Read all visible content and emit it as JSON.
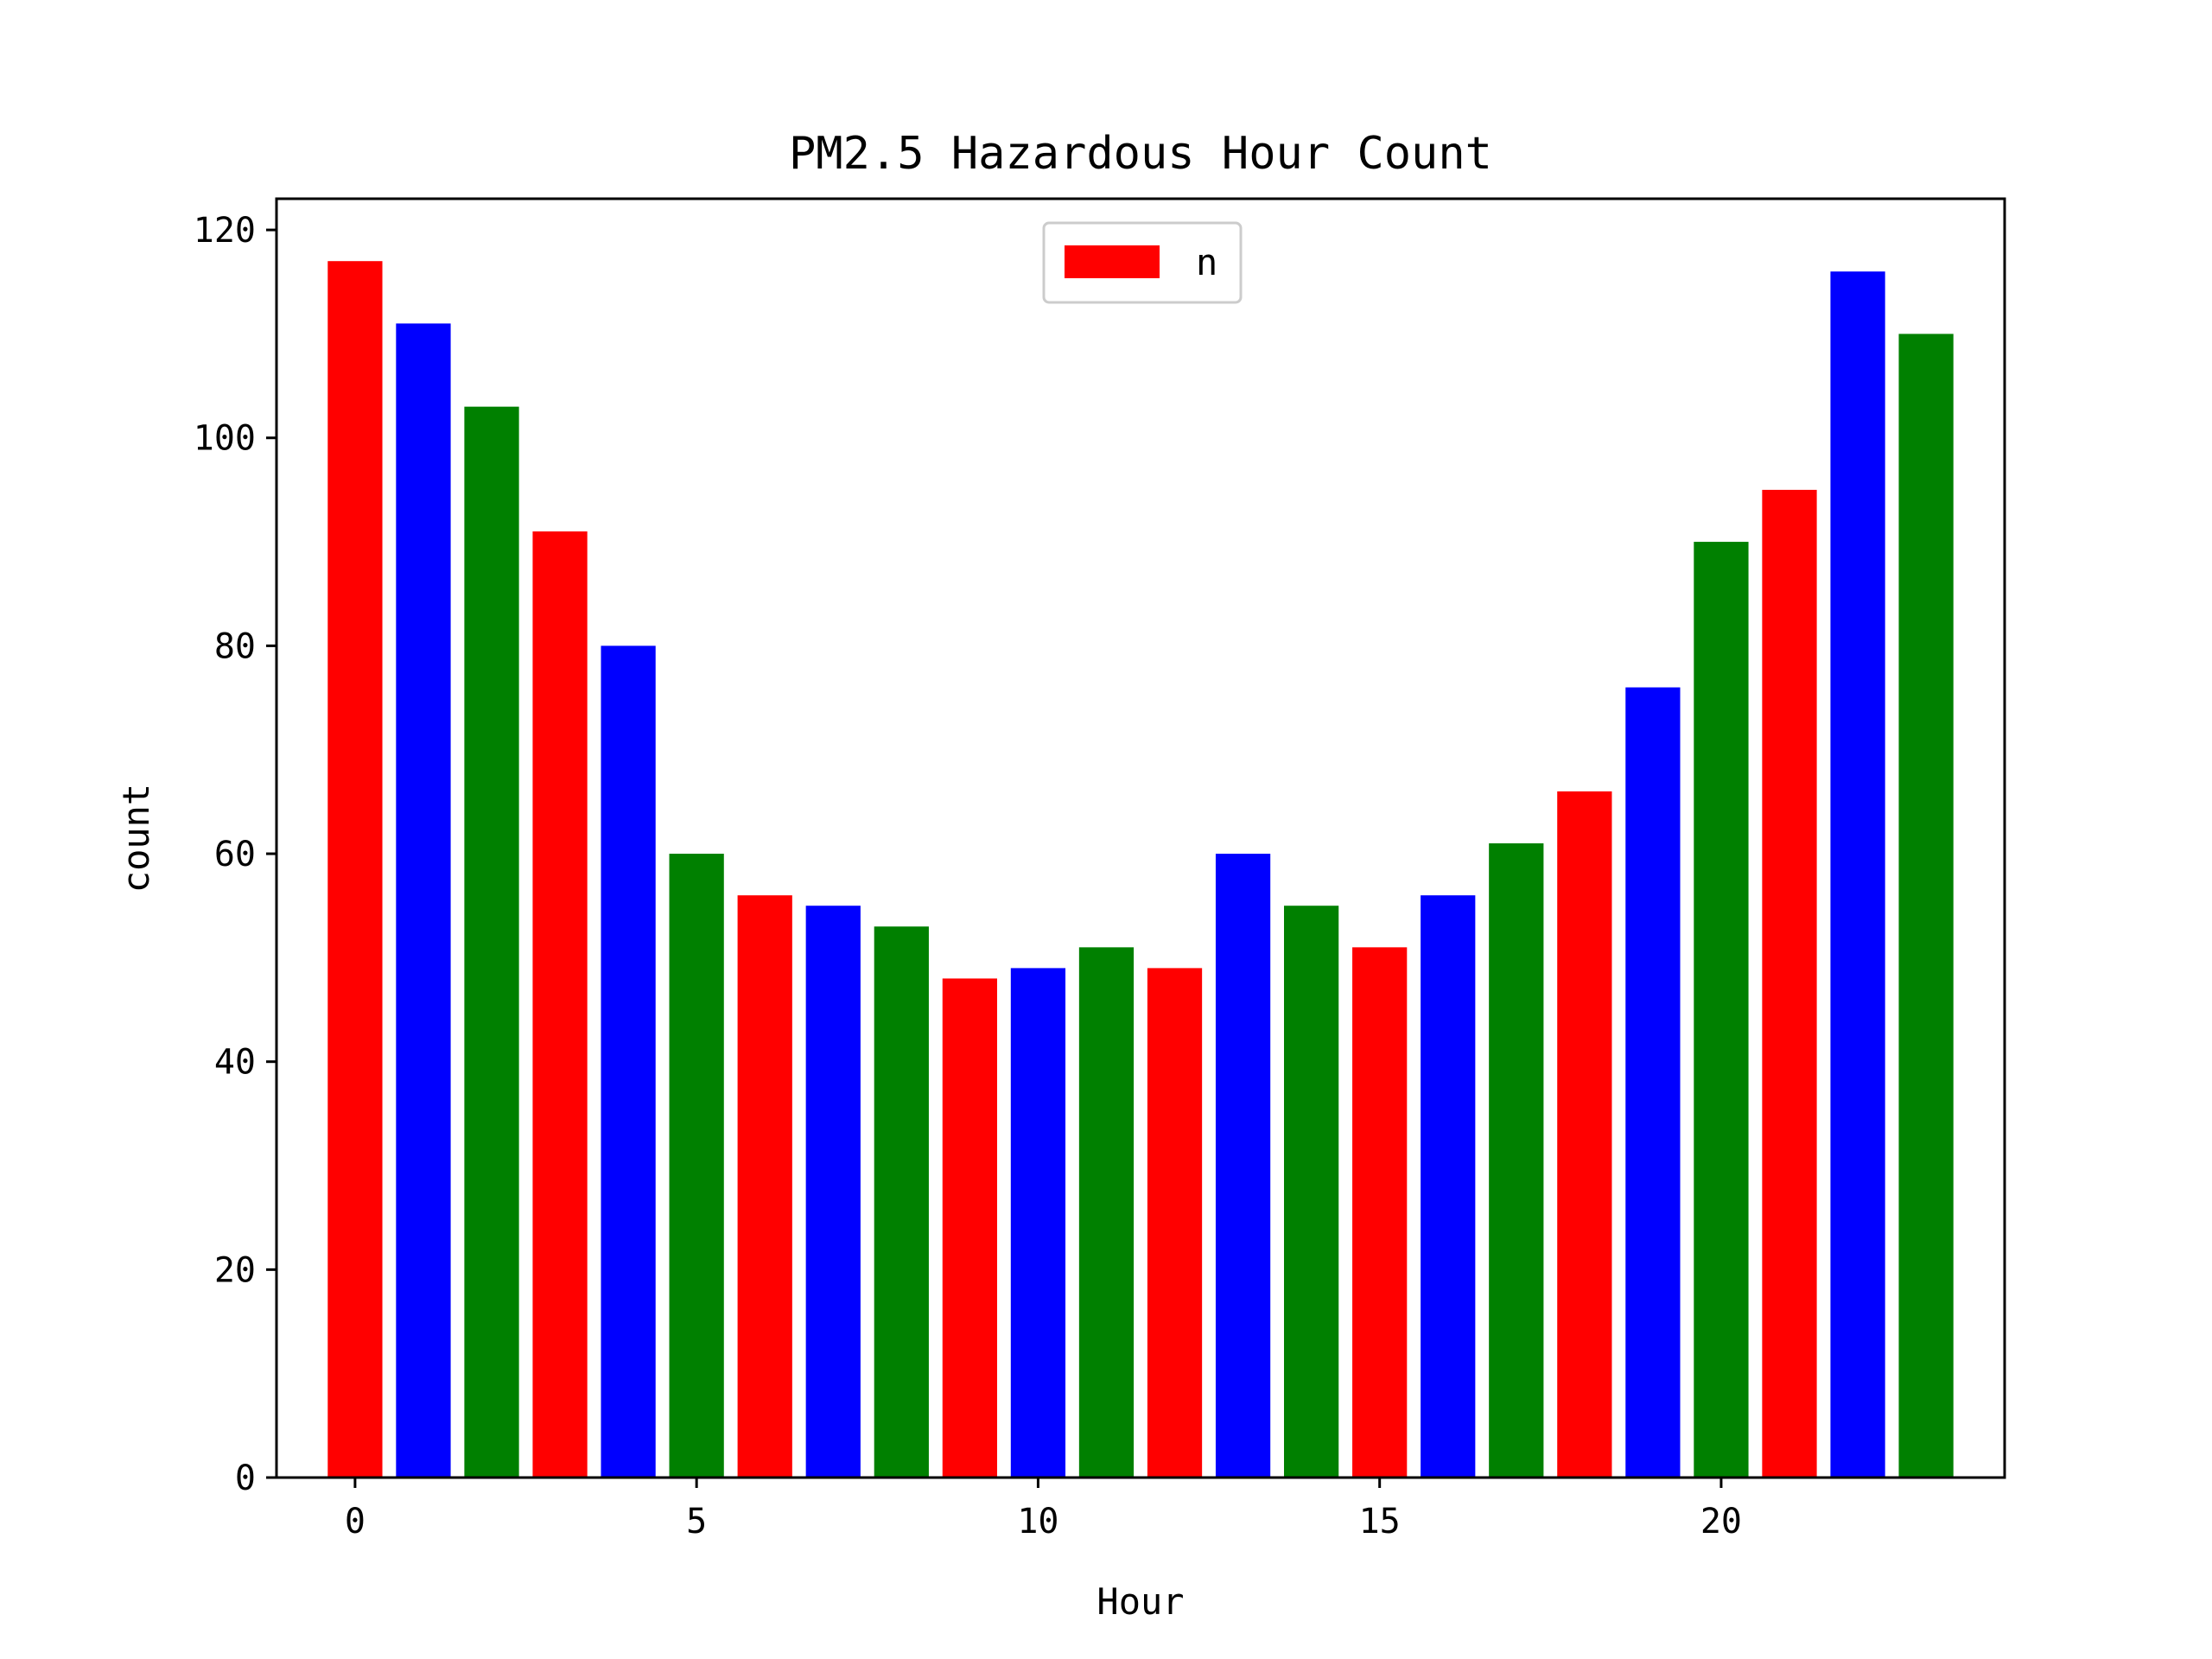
{
  "chart_data": {
    "type": "bar",
    "title": "PM2.5 Hazardous Hour Count",
    "xlabel": "Hour",
    "ylabel": "count",
    "x": [
      0,
      1,
      2,
      3,
      4,
      5,
      6,
      7,
      8,
      9,
      10,
      11,
      12,
      13,
      14,
      15,
      16,
      17,
      18,
      19,
      20,
      21,
      22,
      23
    ],
    "values": [
      117,
      111,
      103,
      91,
      80,
      60,
      56,
      55,
      53,
      48,
      49,
      51,
      49,
      60,
      55,
      51,
      56,
      61,
      66,
      76,
      90,
      95,
      116,
      110
    ],
    "bar_colors": [
      "#ff0000",
      "#0000ff",
      "#008000"
    ],
    "series": [
      {
        "name": "n",
        "color": "#ff0000"
      }
    ],
    "xticks": [
      0,
      5,
      10,
      15,
      20
    ],
    "yticks": [
      0,
      20,
      40,
      60,
      80,
      100,
      120
    ],
    "xlim": [
      -1.15,
      24.15
    ],
    "ylim": [
      0,
      123
    ],
    "legend_position": "upper center",
    "grid": false
  }
}
